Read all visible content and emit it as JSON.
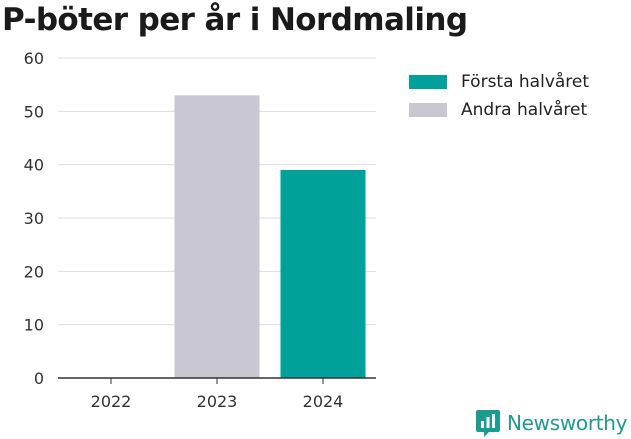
{
  "title": "P-böter per år i Nordmaling",
  "brand": {
    "name": "Newsworthy",
    "icon": "newsworthy-logo-icon",
    "color": "#1b9c8f"
  },
  "legend": {
    "placement": "top-right",
    "items": [
      {
        "label": "Första halvåret",
        "color": "#00a19a"
      },
      {
        "label": "Andra halvåret",
        "color": "#c8c7d2"
      }
    ]
  },
  "chart_data": {
    "type": "bar",
    "stacked": true,
    "categories": [
      "2022",
      "2023",
      "2024"
    ],
    "series": [
      {
        "name": "Första halvåret",
        "color": "#00a19a",
        "values": [
          0,
          0,
          39
        ]
      },
      {
        "name": "Andra halvåret",
        "color": "#c8c7d2",
        "values": [
          0,
          53,
          0
        ]
      }
    ],
    "yticks": [
      0,
      10,
      20,
      30,
      40,
      50,
      60
    ],
    "ylim": [
      0,
      60
    ],
    "grid": true
  }
}
